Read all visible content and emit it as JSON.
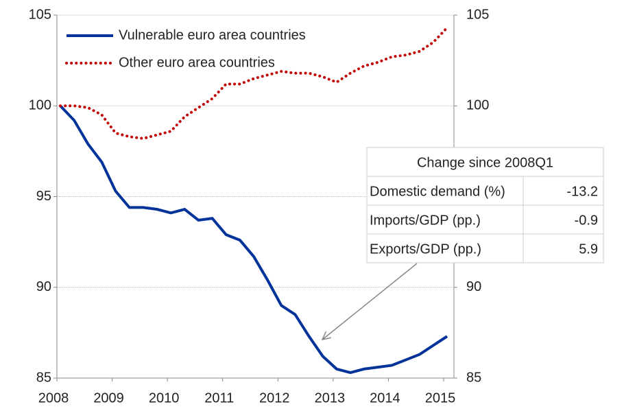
{
  "chart_data": {
    "type": "line",
    "categories": [
      "2008",
      null,
      null,
      null,
      "2009",
      null,
      null,
      null,
      "2010",
      null,
      null,
      null,
      "2011",
      null,
      null,
      null,
      "2012",
      null,
      null,
      null,
      "2013",
      null,
      null,
      null,
      "2014",
      null,
      null,
      null,
      "2015"
    ],
    "series": [
      {
        "name": "Vulnerable euro area countries",
        "color": "#003399",
        "style": "solid",
        "values": [
          100,
          99.2,
          97.9,
          96.9,
          95.3,
          94.4,
          94.4,
          94.3,
          94.1,
          94.3,
          93.7,
          93.8,
          92.9,
          92.6,
          91.7,
          90.4,
          89.0,
          88.5,
          87.3,
          86.2,
          85.5,
          85.3,
          85.5,
          85.6,
          85.7,
          86.0,
          86.3,
          86.8,
          87.3
        ]
      },
      {
        "name": "Other euro area countries",
        "color": "#c00000",
        "style": "dotted",
        "values": [
          100,
          100.0,
          99.9,
          99.5,
          98.5,
          98.3,
          98.2,
          98.4,
          98.6,
          99.4,
          99.9,
          100.4,
          101.2,
          101.2,
          101.5,
          101.7,
          101.9,
          101.8,
          101.8,
          101.6,
          101.3,
          101.8,
          102.2,
          102.4,
          102.7,
          102.8,
          103.0,
          103.5,
          104.3
        ]
      }
    ],
    "ylim": [
      85,
      105
    ],
    "yticks": [
      85,
      90,
      95,
      100,
      105
    ],
    "y2lim": [
      85,
      105
    ],
    "y2ticks": [
      85,
      90,
      95,
      100,
      105
    ],
    "grid": true,
    "legend": "upper left",
    "annotation": {
      "title": "Change since 2008Q1",
      "rows": [
        [
          "Domestic demand (%)",
          "-13.2"
        ],
        [
          "Imports/GDP (pp.)",
          "-0.9"
        ],
        [
          "Exports/GDP (pp.)",
          "5.9"
        ]
      ]
    }
  }
}
